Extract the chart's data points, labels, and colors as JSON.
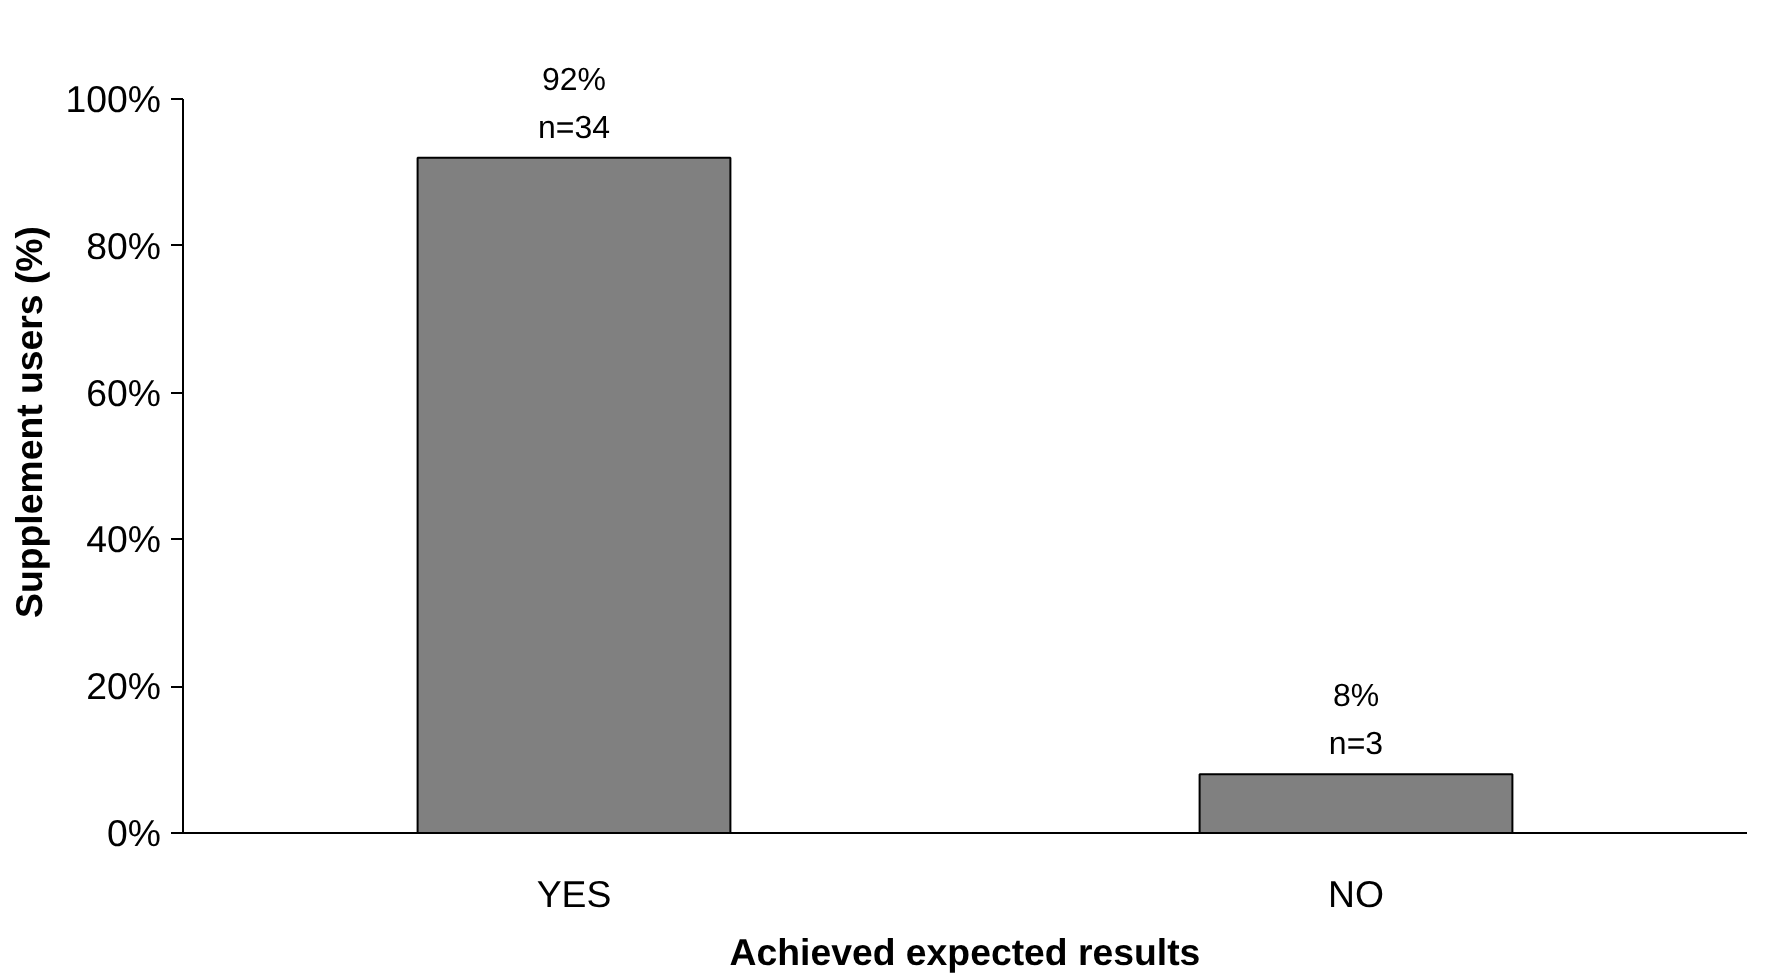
{
  "chart_data": {
    "type": "bar",
    "xlabel": "Achieved expected results",
    "ylabel": "Supplement users (%)",
    "categories": [
      "YES",
      "NO"
    ],
    "values": [
      92,
      8
    ],
    "value_labels": [
      "92%\nn=34",
      "8%\nn=3"
    ],
    "color": "#808080",
    "ylim": [
      0,
      100
    ],
    "yticks": [
      {
        "value": 0,
        "label": "0%"
      },
      {
        "value": 20,
        "label": "20%"
      },
      {
        "value": 40,
        "label": "40%"
      },
      {
        "value": 60,
        "label": "60%"
      },
      {
        "value": 80,
        "label": "80%"
      },
      {
        "value": 100,
        "label": "100%"
      }
    ],
    "grid": false
  }
}
